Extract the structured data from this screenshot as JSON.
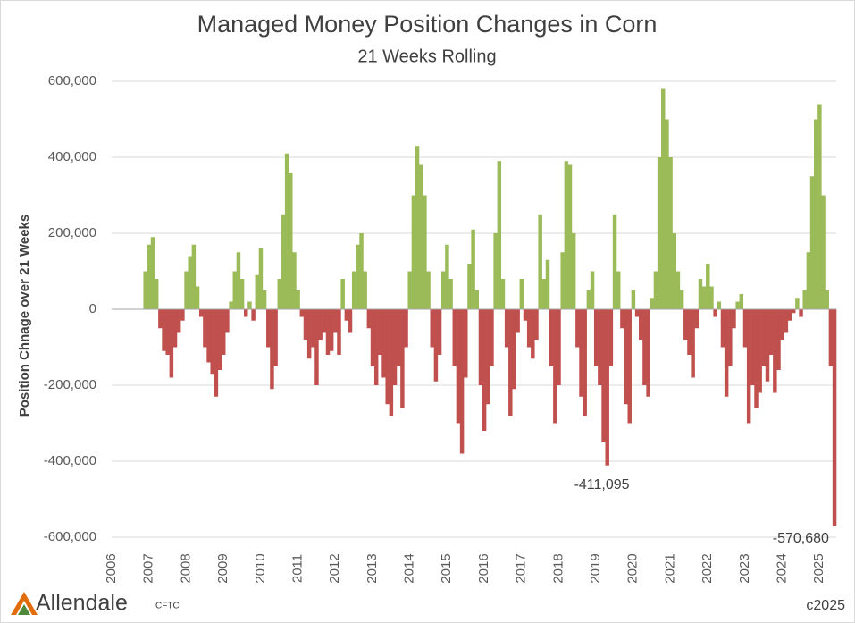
{
  "chart_data": {
    "type": "bar",
    "title": "Managed Money Position Changes in Corn",
    "subtitle": "21 Weeks Rolling",
    "y_axis_label": "Position Chnage over 21 Weeks",
    "source": "CFTC",
    "copyright": "c2025",
    "brand": "Allendale",
    "positive_color": "#9bbb59",
    "negative_color": "#c0504d",
    "grid": true,
    "xlim": [
      2006,
      2025.45
    ],
    "xticks": [
      2006,
      2007,
      2008,
      2009,
      2010,
      2011,
      2012,
      2013,
      2014,
      2015,
      2016,
      2017,
      2018,
      2019,
      2020,
      2021,
      2022,
      2023,
      2024,
      2025
    ],
    "ylim": [
      -600000,
      600000
    ],
    "yticks": [
      {
        "value": -600000,
        "label": "-600,000"
      },
      {
        "value": -400000,
        "label": "-400,000"
      },
      {
        "value": -200000,
        "label": "-200,000"
      },
      0,
      {
        "value": 200000,
        "label": "200,000"
      },
      {
        "value": 400000,
        "label": "400,000"
      },
      {
        "value": 600000,
        "label": "600,000"
      }
    ],
    "x": [
      2006.9,
      2007.0,
      2007.1,
      2007.2,
      2007.3,
      2007.4,
      2007.5,
      2007.6,
      2007.7,
      2007.8,
      2007.9,
      2008.0,
      2008.1,
      2008.2,
      2008.3,
      2008.4,
      2008.5,
      2008.6,
      2008.7,
      2008.8,
      2008.9,
      2009.0,
      2009.1,
      2009.2,
      2009.3,
      2009.4,
      2009.5,
      2009.6,
      2009.7,
      2009.8,
      2009.9,
      2010.0,
      2010.1,
      2010.2,
      2010.3,
      2010.4,
      2010.5,
      2010.6,
      2010.7,
      2010.8,
      2010.9,
      2011.0,
      2011.1,
      2011.2,
      2011.3,
      2011.4,
      2011.5,
      2011.6,
      2011.7,
      2011.8,
      2011.9,
      2012.0,
      2012.1,
      2012.2,
      2012.3,
      2012.4,
      2012.5,
      2012.6,
      2012.7,
      2012.8,
      2012.9,
      2013.0,
      2013.1,
      2013.2,
      2013.3,
      2013.4,
      2013.5,
      2013.6,
      2013.7,
      2013.8,
      2013.9,
      2014.0,
      2014.1,
      2014.2,
      2014.3,
      2014.4,
      2014.5,
      2014.6,
      2014.7,
      2014.8,
      2014.9,
      2015.0,
      2015.1,
      2015.2,
      2015.3,
      2015.4,
      2015.5,
      2015.6,
      2015.7,
      2015.8,
      2015.9,
      2016.0,
      2016.1,
      2016.2,
      2016.3,
      2016.4,
      2016.5,
      2016.6,
      2016.7,
      2016.8,
      2016.9,
      2017.0,
      2017.1,
      2017.2,
      2017.3,
      2017.4,
      2017.5,
      2017.6,
      2017.7,
      2017.8,
      2017.9,
      2018.0,
      2018.1,
      2018.2,
      2018.3,
      2018.4,
      2018.5,
      2018.6,
      2018.7,
      2018.8,
      2018.9,
      2019.0,
      2019.1,
      2019.2,
      2019.3,
      2019.4,
      2019.5,
      2019.6,
      2019.7,
      2019.8,
      2019.9,
      2020.0,
      2020.1,
      2020.2,
      2020.3,
      2020.4,
      2020.5,
      2020.6,
      2020.7,
      2020.8,
      2020.9,
      2021.0,
      2021.1,
      2021.2,
      2021.3,
      2021.4,
      2021.5,
      2021.6,
      2021.7,
      2021.8,
      2021.9,
      2022.0,
      2022.1,
      2022.2,
      2022.3,
      2022.4,
      2022.5,
      2022.6,
      2022.7,
      2022.8,
      2022.9,
      2023.0,
      2023.1,
      2023.2,
      2023.3,
      2023.4,
      2023.5,
      2023.6,
      2023.7,
      2023.8,
      2023.9,
      2024.0,
      2024.1,
      2024.2,
      2024.3,
      2024.4,
      2024.5,
      2024.6,
      2024.7,
      2024.8,
      2024.9,
      2025.0,
      2025.1,
      2025.2,
      2025.3,
      2025.4
    ],
    "values": [
      100000,
      170000,
      190000,
      80000,
      -50000,
      -110000,
      -120000,
      -180000,
      -100000,
      -60000,
      -30000,
      100000,
      140000,
      170000,
      60000,
      -20000,
      -100000,
      -140000,
      -170000,
      -230000,
      -160000,
      -120000,
      -60000,
      20000,
      100000,
      150000,
      80000,
      -20000,
      20000,
      -30000,
      90000,
      160000,
      50000,
      -100000,
      -210000,
      -150000,
      80000,
      250000,
      410000,
      360000,
      150000,
      50000,
      -20000,
      -80000,
      -130000,
      -100000,
      -200000,
      -80000,
      -60000,
      -120000,
      -110000,
      -60000,
      -120000,
      80000,
      -30000,
      -60000,
      100000,
      170000,
      200000,
      100000,
      -50000,
      -150000,
      -200000,
      -120000,
      -180000,
      -250000,
      -280000,
      -200000,
      -150000,
      -260000,
      -100000,
      100000,
      300000,
      430000,
      380000,
      300000,
      100000,
      -100000,
      -190000,
      -120000,
      100000,
      170000,
      80000,
      -150000,
      -300000,
      -380000,
      -180000,
      120000,
      210000,
      50000,
      -200000,
      -320000,
      -250000,
      -150000,
      200000,
      390000,
      80000,
      -100000,
      -280000,
      -210000,
      -60000,
      80000,
      -30000,
      -100000,
      -130000,
      -80000,
      250000,
      80000,
      130000,
      -150000,
      -300000,
      -200000,
      150000,
      390000,
      380000,
      200000,
      -100000,
      -230000,
      -280000,
      50000,
      100000,
      -150000,
      -200000,
      -350000,
      -411095,
      -150000,
      250000,
      100000,
      -50000,
      -250000,
      -300000,
      50000,
      -20000,
      -80000,
      -200000,
      -230000,
      30000,
      100000,
      400000,
      580000,
      500000,
      400000,
      200000,
      100000,
      50000,
      -80000,
      -120000,
      -180000,
      -50000,
      80000,
      60000,
      120000,
      60000,
      -20000,
      20000,
      -100000,
      -230000,
      -150000,
      -50000,
      20000,
      40000,
      -100000,
      -300000,
      -200000,
      -260000,
      -220000,
      -150000,
      -190000,
      -120000,
      -220000,
      -160000,
      -80000,
      -60000,
      -30000,
      -10000,
      30000,
      -20000,
      50000,
      150000,
      350000,
      500000,
      540000,
      300000,
      50000,
      -150000,
      -570680
    ],
    "annotations": [
      {
        "label": "-411,095",
        "x": 2019.3,
        "value": -411095
      },
      {
        "label": "-570,680",
        "x": 2025.4,
        "value": -570680
      }
    ]
  }
}
